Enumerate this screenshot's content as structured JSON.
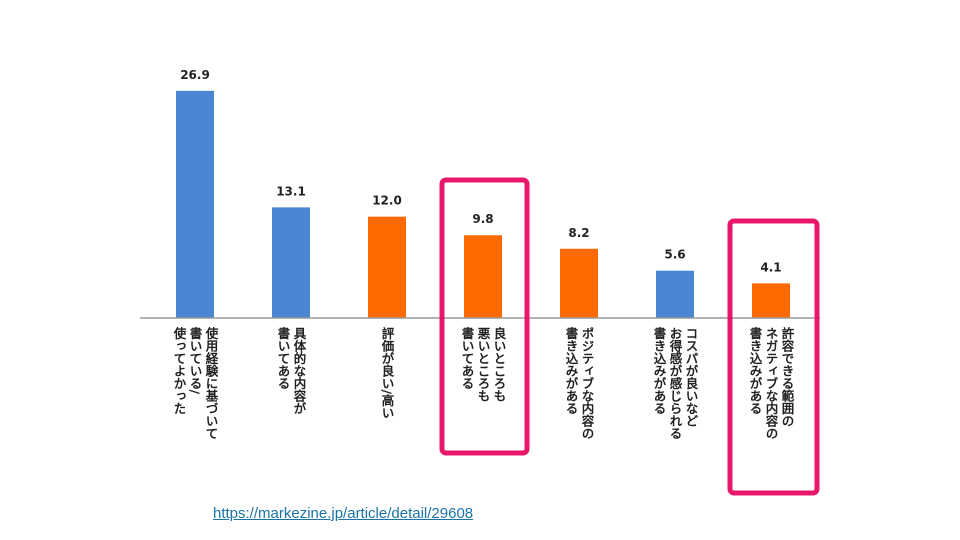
{
  "chart_data": {
    "type": "bar",
    "categories": [
      [
        "使用経験に基づいて",
        "書いている/",
        "使ってよかった"
      ],
      [
        "具体的な内容が",
        "書いてある"
      ],
      [
        "評価が良い/高い"
      ],
      [
        "良いところも",
        "悪いところも",
        "書いてある"
      ],
      [
        "ポジティブな内容の",
        "書き込みがある"
      ],
      [
        "コスパが良いなど",
        "お得感が感じられる",
        "書き込みがある"
      ],
      [
        "許容できる範囲の",
        "ネガティブな内容の",
        "書き込みがある"
      ]
    ],
    "values": [
      26.9,
      13.1,
      12.0,
      9.8,
      8.2,
      5.6,
      4.1
    ],
    "value_labels": [
      "26.9",
      "13.1",
      "12.0",
      "9.8",
      "8.2",
      "5.6",
      "4.1"
    ],
    "bar_colors": [
      "#4a86d4",
      "#4a86d4",
      "#ff6a00",
      "#ff6a00",
      "#ff6a00",
      "#4a86d4",
      "#ff6a00"
    ],
    "highlighted": [
      3,
      6
    ],
    "highlight_color": "#e8176a",
    "ylim": [
      0,
      27
    ],
    "grid": false,
    "title": "",
    "xlabel": "",
    "ylabel": ""
  },
  "source": {
    "url_text": "https://markezine.jp/article/detail/29608"
  }
}
